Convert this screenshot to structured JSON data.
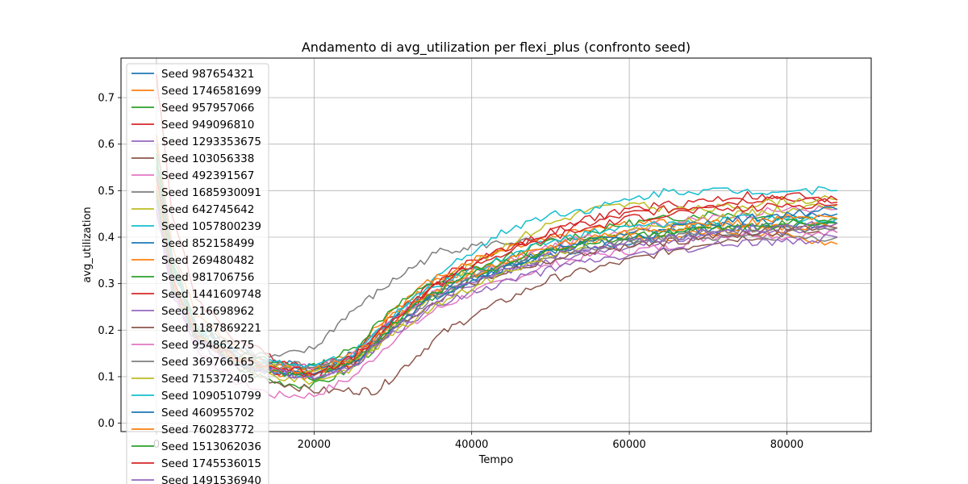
{
  "chart_data": {
    "type": "line",
    "title": "Andamento di avg_utilization per flexi_plus (confronto seed)",
    "xlabel": "Tempo",
    "ylabel": "avg_utilization",
    "xlim": [
      -4500,
      90700
    ],
    "ylim": [
      -0.018,
      0.785
    ],
    "xticks": [
      0,
      20000,
      40000,
      60000,
      80000
    ],
    "xtick_labels": [
      "0",
      "20000",
      "40000",
      "60000",
      "80000"
    ],
    "yticks": [
      0.0,
      0.1,
      0.2,
      0.3,
      0.4,
      0.5,
      0.6,
      0.7
    ],
    "ytick_labels": [
      "0.0",
      "0.1",
      "0.2",
      "0.3",
      "0.4",
      "0.5",
      "0.6",
      "0.7"
    ],
    "grid": true,
    "legend_position": "upper-left",
    "series": [
      {
        "name": "Seed 987654321",
        "color": "#1f77b4",
        "x": [
          0,
          2000,
          5000,
          10000,
          15000,
          20000,
          25000,
          30000,
          35000,
          40000,
          45000,
          50000,
          55000,
          60000,
          65000,
          70000,
          75000,
          80000,
          86400
        ],
        "y": [
          0.55,
          0.34,
          0.21,
          0.16,
          0.13,
          0.12,
          0.15,
          0.22,
          0.28,
          0.31,
          0.33,
          0.36,
          0.38,
          0.39,
          0.4,
          0.41,
          0.42,
          0.42,
          0.43
        ]
      },
      {
        "name": "Seed 1746581699",
        "color": "#ff7f0e",
        "x": [
          0,
          2000,
          5000,
          10000,
          15000,
          20000,
          25000,
          30000,
          35000,
          40000,
          45000,
          50000,
          55000,
          60000,
          65000,
          70000,
          75000,
          80000,
          86400
        ],
        "y": [
          0.62,
          0.38,
          0.23,
          0.17,
          0.12,
          0.11,
          0.16,
          0.24,
          0.3,
          0.33,
          0.35,
          0.37,
          0.39,
          0.4,
          0.4,
          0.41,
          0.41,
          0.4,
          0.385
        ]
      },
      {
        "name": "Seed 957957066",
        "color": "#2ca02c",
        "x": [
          0,
          2000,
          5000,
          10000,
          15000,
          20000,
          25000,
          30000,
          35000,
          40000,
          45000,
          50000,
          55000,
          60000,
          65000,
          70000,
          75000,
          80000,
          86400
        ],
        "y": [
          0.58,
          0.35,
          0.2,
          0.12,
          0.09,
          0.08,
          0.12,
          0.2,
          0.27,
          0.31,
          0.34,
          0.37,
          0.39,
          0.4,
          0.41,
          0.42,
          0.43,
          0.43,
          0.44
        ]
      },
      {
        "name": "Seed 949096810",
        "color": "#d62728",
        "x": [
          0,
          2000,
          5000,
          10000,
          15000,
          20000,
          25000,
          30000,
          35000,
          40000,
          45000,
          50000,
          55000,
          60000,
          65000,
          70000,
          75000,
          80000,
          86400
        ],
        "y": [
          0.75,
          0.45,
          0.27,
          0.18,
          0.14,
          0.12,
          0.15,
          0.23,
          0.3,
          0.35,
          0.38,
          0.41,
          0.44,
          0.46,
          0.47,
          0.48,
          0.49,
          0.48,
          0.475
        ]
      },
      {
        "name": "Seed 1293353675",
        "color": "#9467bd",
        "x": [
          0,
          2000,
          5000,
          10000,
          15000,
          20000,
          25000,
          30000,
          35000,
          40000,
          45000,
          50000,
          55000,
          60000,
          65000,
          70000,
          75000,
          80000,
          86400
        ],
        "y": [
          0.52,
          0.31,
          0.19,
          0.14,
          0.11,
          0.1,
          0.13,
          0.21,
          0.27,
          0.3,
          0.33,
          0.35,
          0.37,
          0.38,
          0.39,
          0.4,
          0.41,
          0.41,
          0.42
        ]
      },
      {
        "name": "Seed 103056338",
        "color": "#8c564b",
        "x": [
          0,
          2000,
          5000,
          10000,
          15000,
          20000,
          25000,
          28000,
          32000,
          36000,
          40000,
          45000,
          50000,
          55000,
          60000,
          65000,
          70000,
          75000,
          80000,
          86400
        ],
        "y": [
          0.5,
          0.3,
          0.18,
          0.12,
          0.09,
          0.07,
          0.07,
          0.07,
          0.13,
          0.19,
          0.23,
          0.27,
          0.31,
          0.33,
          0.35,
          0.37,
          0.39,
          0.4,
          0.41,
          0.41
        ]
      },
      {
        "name": "Seed 492391567",
        "color": "#e377c2",
        "x": [
          0,
          2000,
          5000,
          10000,
          15000,
          20000,
          25000,
          30000,
          35000,
          40000,
          45000,
          50000,
          55000,
          60000,
          65000,
          70000,
          75000,
          80000,
          86400
        ],
        "y": [
          0.48,
          0.29,
          0.16,
          0.09,
          0.06,
          0.06,
          0.1,
          0.18,
          0.24,
          0.28,
          0.31,
          0.34,
          0.36,
          0.37,
          0.38,
          0.4,
          0.41,
          0.4,
          0.41
        ]
      },
      {
        "name": "Seed 1685930091",
        "color": "#7f7f7f",
        "x": [
          0,
          2000,
          5000,
          10000,
          15000,
          20000,
          24000,
          28000,
          32000,
          36000,
          40000,
          45000,
          50000,
          55000,
          60000,
          65000,
          70000,
          75000,
          80000,
          86400
        ],
        "y": [
          0.6,
          0.36,
          0.22,
          0.16,
          0.14,
          0.16,
          0.23,
          0.28,
          0.33,
          0.37,
          0.38,
          0.39,
          0.39,
          0.39,
          0.39,
          0.4,
          0.4,
          0.4,
          0.4,
          0.4
        ]
      },
      {
        "name": "Seed 642745642",
        "color": "#bcbd22",
        "x": [
          0,
          2000,
          5000,
          10000,
          15000,
          20000,
          25000,
          30000,
          35000,
          40000,
          45000,
          50000,
          55000,
          60000,
          65000,
          70000,
          75000,
          80000,
          86400
        ],
        "y": [
          0.54,
          0.32,
          0.19,
          0.13,
          0.1,
          0.09,
          0.12,
          0.2,
          0.28,
          0.34,
          0.39,
          0.43,
          0.46,
          0.47,
          0.46,
          0.46,
          0.47,
          0.48,
          0.48
        ]
      },
      {
        "name": "Seed 1057800239",
        "color": "#17becf",
        "x": [
          0,
          2000,
          5000,
          10000,
          15000,
          20000,
          25000,
          30000,
          35000,
          40000,
          45000,
          50000,
          55000,
          60000,
          65000,
          70000,
          75000,
          80000,
          86400
        ],
        "y": [
          0.56,
          0.34,
          0.2,
          0.14,
          0.11,
          0.1,
          0.14,
          0.22,
          0.31,
          0.37,
          0.42,
          0.45,
          0.46,
          0.48,
          0.5,
          0.5,
          0.5,
          0.5,
          0.5
        ]
      },
      {
        "name": "Seed 852158499",
        "color": "#1f77b4",
        "x": [
          0,
          2000,
          5000,
          10000,
          15000,
          20000,
          25000,
          30000,
          35000,
          40000,
          45000,
          50000,
          55000,
          60000,
          65000,
          70000,
          75000,
          80000,
          86400
        ],
        "y": [
          0.51,
          0.31,
          0.19,
          0.14,
          0.12,
          0.11,
          0.14,
          0.22,
          0.28,
          0.31,
          0.34,
          0.37,
          0.39,
          0.4,
          0.41,
          0.42,
          0.43,
          0.44,
          0.45
        ]
      },
      {
        "name": "Seed 269480482",
        "color": "#ff7f0e",
        "x": [
          0,
          2000,
          5000,
          10000,
          15000,
          20000,
          25000,
          30000,
          35000,
          40000,
          45000,
          50000,
          55000,
          60000,
          65000,
          70000,
          75000,
          80000,
          86400
        ],
        "y": [
          0.53,
          0.32,
          0.19,
          0.13,
          0.11,
          0.1,
          0.13,
          0.24,
          0.31,
          0.35,
          0.38,
          0.4,
          0.42,
          0.43,
          0.43,
          0.42,
          0.42,
          0.42,
          0.43
        ]
      },
      {
        "name": "Seed 981706756",
        "color": "#2ca02c",
        "x": [
          0,
          2000,
          5000,
          10000,
          15000,
          20000,
          25000,
          30000,
          35000,
          40000,
          45000,
          50000,
          55000,
          60000,
          65000,
          70000,
          75000,
          80000,
          86400
        ],
        "y": [
          0.57,
          0.34,
          0.21,
          0.15,
          0.13,
          0.12,
          0.16,
          0.25,
          0.3,
          0.33,
          0.36,
          0.39,
          0.41,
          0.43,
          0.44,
          0.45,
          0.45,
          0.44,
          0.44
        ]
      },
      {
        "name": "Seed 1441609748",
        "color": "#d62728",
        "x": [
          0,
          2000,
          5000,
          10000,
          15000,
          20000,
          25000,
          30000,
          35000,
          40000,
          45000,
          50000,
          55000,
          60000,
          65000,
          70000,
          75000,
          80000,
          86400
        ],
        "y": [
          0.49,
          0.3,
          0.18,
          0.13,
          0.11,
          0.1,
          0.13,
          0.22,
          0.29,
          0.34,
          0.38,
          0.41,
          0.43,
          0.45,
          0.46,
          0.47,
          0.48,
          0.49,
          0.48
        ]
      },
      {
        "name": "Seed 216698962",
        "color": "#9467bd",
        "x": [
          0,
          2000,
          5000,
          10000,
          15000,
          20000,
          25000,
          30000,
          35000,
          40000,
          45000,
          50000,
          55000,
          60000,
          65000,
          70000,
          75000,
          80000,
          86400
        ],
        "y": [
          0.46,
          0.28,
          0.17,
          0.13,
          0.11,
          0.1,
          0.12,
          0.19,
          0.25,
          0.28,
          0.31,
          0.33,
          0.35,
          0.36,
          0.37,
          0.38,
          0.39,
          0.39,
          0.4
        ]
      },
      {
        "name": "Seed 1187869221",
        "color": "#8c564b",
        "x": [
          0,
          2000,
          5000,
          10000,
          15000,
          20000,
          25000,
          30000,
          35000,
          40000,
          45000,
          50000,
          55000,
          60000,
          65000,
          70000,
          75000,
          80000,
          86400
        ],
        "y": [
          0.5,
          0.31,
          0.19,
          0.14,
          0.12,
          0.11,
          0.13,
          0.2,
          0.26,
          0.3,
          0.33,
          0.35,
          0.37,
          0.38,
          0.39,
          0.4,
          0.41,
          0.42,
          0.42
        ]
      },
      {
        "name": "Seed 954862275",
        "color": "#e377c2",
        "x": [
          0,
          2000,
          5000,
          10000,
          15000,
          20000,
          25000,
          30000,
          35000,
          40000,
          45000,
          50000,
          55000,
          60000,
          65000,
          70000,
          75000,
          80000,
          86400
        ],
        "y": [
          0.47,
          0.29,
          0.18,
          0.14,
          0.12,
          0.12,
          0.15,
          0.22,
          0.28,
          0.32,
          0.35,
          0.38,
          0.4,
          0.42,
          0.43,
          0.44,
          0.45,
          0.46,
          0.46
        ]
      },
      {
        "name": "Seed 369766165",
        "color": "#7f7f7f",
        "x": [
          0,
          2000,
          5000,
          10000,
          15000,
          20000,
          25000,
          30000,
          35000,
          40000,
          45000,
          50000,
          55000,
          60000,
          65000,
          70000,
          75000,
          80000,
          86400
        ],
        "y": [
          0.55,
          0.33,
          0.2,
          0.15,
          0.13,
          0.12,
          0.14,
          0.21,
          0.27,
          0.31,
          0.34,
          0.36,
          0.38,
          0.39,
          0.4,
          0.41,
          0.42,
          0.42,
          0.42
        ]
      },
      {
        "name": "Seed 715372405",
        "color": "#bcbd22",
        "x": [
          0,
          2000,
          5000,
          10000,
          15000,
          20000,
          25000,
          30000,
          35000,
          40000,
          45000,
          50000,
          55000,
          60000,
          65000,
          70000,
          75000,
          80000,
          86400
        ],
        "y": [
          0.52,
          0.31,
          0.19,
          0.14,
          0.12,
          0.11,
          0.13,
          0.19,
          0.25,
          0.29,
          0.33,
          0.36,
          0.39,
          0.41,
          0.43,
          0.44,
          0.45,
          0.46,
          0.47
        ]
      },
      {
        "name": "Seed 1090510799",
        "color": "#17becf",
        "x": [
          0,
          2000,
          5000,
          10000,
          15000,
          20000,
          25000,
          30000,
          35000,
          40000,
          45000,
          50000,
          55000,
          60000,
          65000,
          70000,
          75000,
          80000,
          86400
        ],
        "y": [
          0.54,
          0.33,
          0.2,
          0.15,
          0.13,
          0.12,
          0.15,
          0.23,
          0.29,
          0.33,
          0.36,
          0.39,
          0.41,
          0.42,
          0.43,
          0.43,
          0.44,
          0.44,
          0.44
        ]
      },
      {
        "name": "Seed 460955702",
        "color": "#1f77b4",
        "x": [
          0,
          2000,
          5000,
          10000,
          15000,
          20000,
          25000,
          30000,
          35000,
          40000,
          45000,
          50000,
          55000,
          60000,
          65000,
          70000,
          75000,
          80000,
          86400
        ],
        "y": [
          0.5,
          0.3,
          0.18,
          0.13,
          0.11,
          0.1,
          0.13,
          0.21,
          0.27,
          0.31,
          0.34,
          0.37,
          0.39,
          0.41,
          0.42,
          0.43,
          0.44,
          0.45,
          0.46
        ]
      },
      {
        "name": "Seed 760283772",
        "color": "#ff7f0e",
        "x": [
          0,
          2000,
          5000,
          10000,
          15000,
          20000,
          25000,
          30000,
          35000,
          40000,
          45000,
          50000,
          55000,
          60000,
          65000,
          70000,
          75000,
          80000,
          86400
        ],
        "y": [
          0.51,
          0.31,
          0.19,
          0.14,
          0.12,
          0.11,
          0.14,
          0.22,
          0.28,
          0.32,
          0.35,
          0.38,
          0.4,
          0.41,
          0.42,
          0.43,
          0.43,
          0.44,
          0.44
        ]
      },
      {
        "name": "Seed 1513062036",
        "color": "#2ca02c",
        "x": [
          0,
          2000,
          5000,
          10000,
          15000,
          20000,
          25000,
          30000,
          35000,
          40000,
          45000,
          50000,
          55000,
          60000,
          65000,
          70000,
          75000,
          80000,
          86400
        ],
        "y": [
          0.49,
          0.3,
          0.18,
          0.13,
          0.11,
          0.1,
          0.13,
          0.21,
          0.28,
          0.32,
          0.35,
          0.37,
          0.39,
          0.4,
          0.41,
          0.42,
          0.42,
          0.43,
          0.43
        ]
      },
      {
        "name": "Seed 1745536015",
        "color": "#d62728",
        "x": [
          0,
          2000,
          5000,
          10000,
          15000,
          20000,
          25000,
          30000,
          35000,
          40000,
          45000,
          50000,
          55000,
          60000,
          65000,
          70000,
          75000,
          80000,
          86400
        ],
        "y": [
          0.53,
          0.32,
          0.19,
          0.14,
          0.12,
          0.11,
          0.14,
          0.22,
          0.29,
          0.34,
          0.37,
          0.4,
          0.42,
          0.44,
          0.45,
          0.46,
          0.46,
          0.47,
          0.47
        ]
      },
      {
        "name": "Seed 1491536940",
        "color": "#9467bd",
        "x": [
          0,
          2000,
          5000,
          10000,
          15000,
          20000,
          25000,
          30000,
          35000,
          40000,
          45000,
          50000,
          55000,
          60000,
          65000,
          70000,
          75000,
          80000,
          86400
        ],
        "y": [
          0.48,
          0.29,
          0.18,
          0.13,
          0.11,
          0.1,
          0.12,
          0.2,
          0.26,
          0.3,
          0.33,
          0.36,
          0.38,
          0.39,
          0.4,
          0.41,
          0.42,
          0.42,
          0.43
        ]
      }
    ]
  }
}
